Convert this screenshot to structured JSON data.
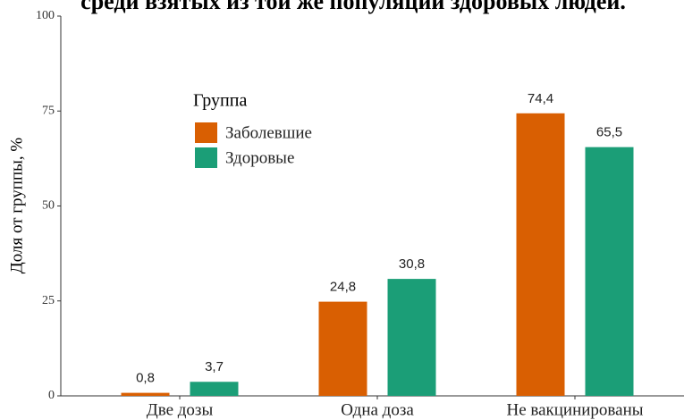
{
  "chart_data": {
    "type": "bar",
    "title": "среди взятых из той же популяции здоровых людей.",
    "ylabel": "Доля от группы, %",
    "legend_title": "Группа",
    "categories": [
      "Две дозы",
      "Одна доза",
      "Не вакцинированы"
    ],
    "series": [
      {
        "name": "Заболевшие",
        "color": "#d95f02",
        "values": [
          0.8,
          24.8,
          74.4
        ],
        "value_labels": [
          "0,8",
          "24,8",
          "74,4"
        ]
      },
      {
        "name": "Здоровые",
        "color": "#1b9e77",
        "values": [
          3.7,
          30.8,
          65.5
        ],
        "value_labels": [
          "3,7",
          "30,8",
          "65,5"
        ]
      }
    ],
    "ylim": [
      0,
      100
    ],
    "yticks": [
      0,
      25,
      50,
      75,
      100
    ],
    "grid": false
  }
}
